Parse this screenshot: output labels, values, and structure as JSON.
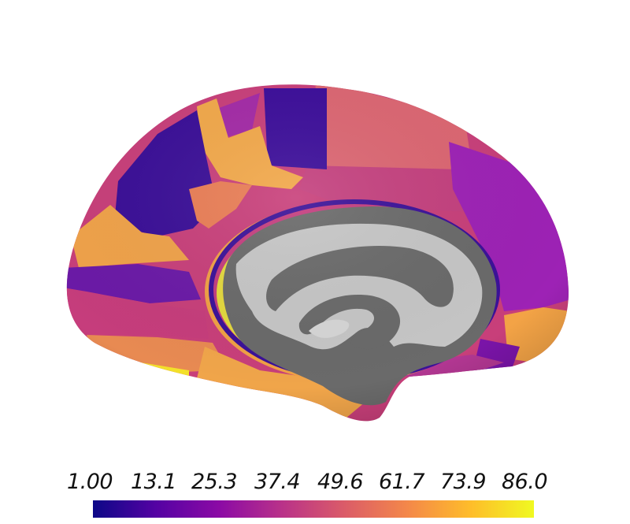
{
  "colorbar": {
    "colormap": "plasma",
    "tick_labels": [
      "1.00",
      "13.1",
      "25.3",
      "37.4",
      "49.6",
      "61.7",
      "73.9",
      "86.0"
    ],
    "range": [
      1.0,
      86.0
    ],
    "colors": [
      "#0d0887",
      "#5402a3",
      "#8b0aa5",
      "#b93289",
      "#db5c68",
      "#f48849",
      "#febd2a",
      "#f0f921"
    ]
  },
  "surface": {
    "medial_wall_colors": [
      "#646464",
      "#c8c8c8"
    ]
  }
}
